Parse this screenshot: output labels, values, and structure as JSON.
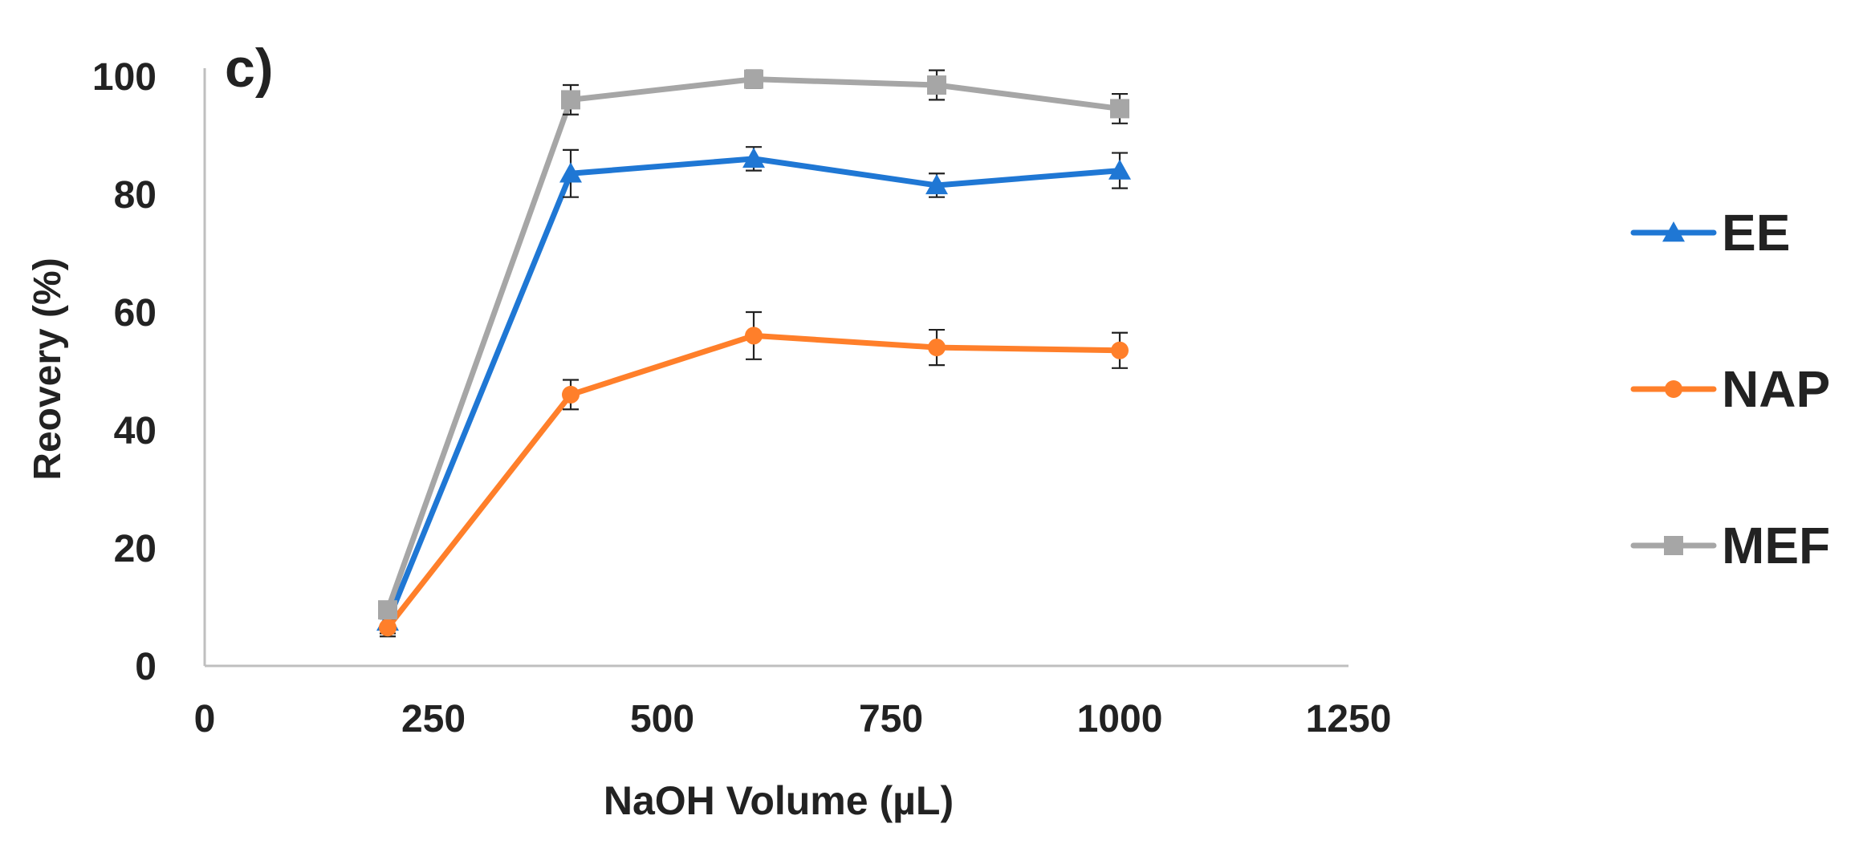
{
  "panel_label": "c)",
  "colors": {
    "EE": "#1f77d4",
    "NAP": "#ff7f2a",
    "MEF": "#a6a6a6",
    "axis": "#bfbfbf",
    "error_bar": "#222222"
  },
  "chart_data": {
    "type": "line",
    "title": "",
    "xlabel": "NaOH Volume (µL)",
    "ylabel": "Reovery (%)",
    "xlim": [
      0,
      1250
    ],
    "ylim": [
      0,
      100
    ],
    "x_ticks": [
      0,
      250,
      500,
      750,
      1000,
      1250
    ],
    "y_ticks": [
      0,
      20,
      40,
      60,
      80,
      100
    ],
    "grid": false,
    "legend_position": "right",
    "x": [
      200,
      400,
      600,
      800,
      1000
    ],
    "series": [
      {
        "name": "EE",
        "marker": "triangle",
        "values": [
          7.5,
          83.5,
          86,
          81.5,
          84
        ],
        "errors": [
          2,
          4,
          2,
          2,
          3
        ]
      },
      {
        "name": "NAP",
        "marker": "circle",
        "values": [
          6.5,
          46,
          56,
          54,
          53.5
        ],
        "errors": [
          1.5,
          2.5,
          4,
          3,
          3
        ]
      },
      {
        "name": "MEF",
        "marker": "square",
        "values": [
          9.5,
          96,
          99.5,
          98.5,
          94.5
        ],
        "errors": [
          1,
          2.5,
          1.5,
          2.5,
          2.5
        ]
      }
    ]
  }
}
